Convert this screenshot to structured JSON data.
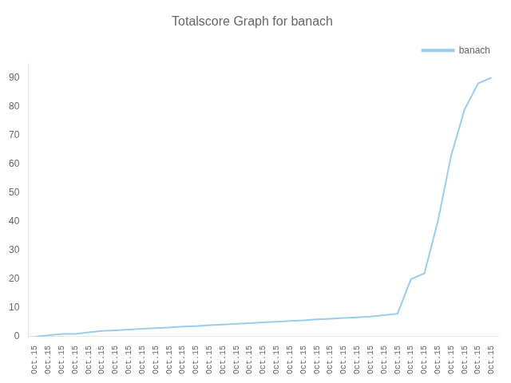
{
  "chart_data": {
    "type": "line",
    "title": "Totalscore Graph for banach",
    "categories": [
      "Oct.15",
      "Oct.15",
      "Oct.15",
      "Oct.15",
      "Oct.15",
      "Oct.15",
      "Oct.15",
      "Oct.15",
      "Oct.15",
      "Oct.15",
      "Oct.15",
      "Oct.15",
      "Oct.15",
      "Oct.15",
      "Oct.15",
      "Oct.15",
      "Oct.15",
      "Oct.15",
      "Oct.15",
      "Oct.15",
      "Oct.15",
      "Oct.15",
      "Oct.15",
      "Oct.15",
      "Oct.15",
      "Oct.15",
      "Oct.15",
      "Oct.15",
      "Oct.15",
      "Oct.15",
      "Oct.15",
      "Oct.15",
      "Oct.15",
      "Oct.15",
      "Oct.15"
    ],
    "series": [
      {
        "name": "banach",
        "color": "#99ccee",
        "values": [
          0,
          0.5,
          1,
          1,
          1.5,
          2,
          2.2,
          2.5,
          2.8,
          3,
          3.2,
          3.5,
          3.7,
          4,
          4.2,
          4.5,
          4.7,
          5,
          5.2,
          5.5,
          5.7,
          6,
          6.2,
          6.5,
          6.7,
          7,
          7.5,
          8,
          20,
          22,
          40,
          63,
          79,
          88,
          90
        ]
      }
    ],
    "ylim": [
      0,
      95
    ],
    "yticks": [
      0,
      10,
      20,
      30,
      40,
      50,
      60,
      70,
      80,
      90
    ],
    "grid": false,
    "legend": "upper right"
  }
}
